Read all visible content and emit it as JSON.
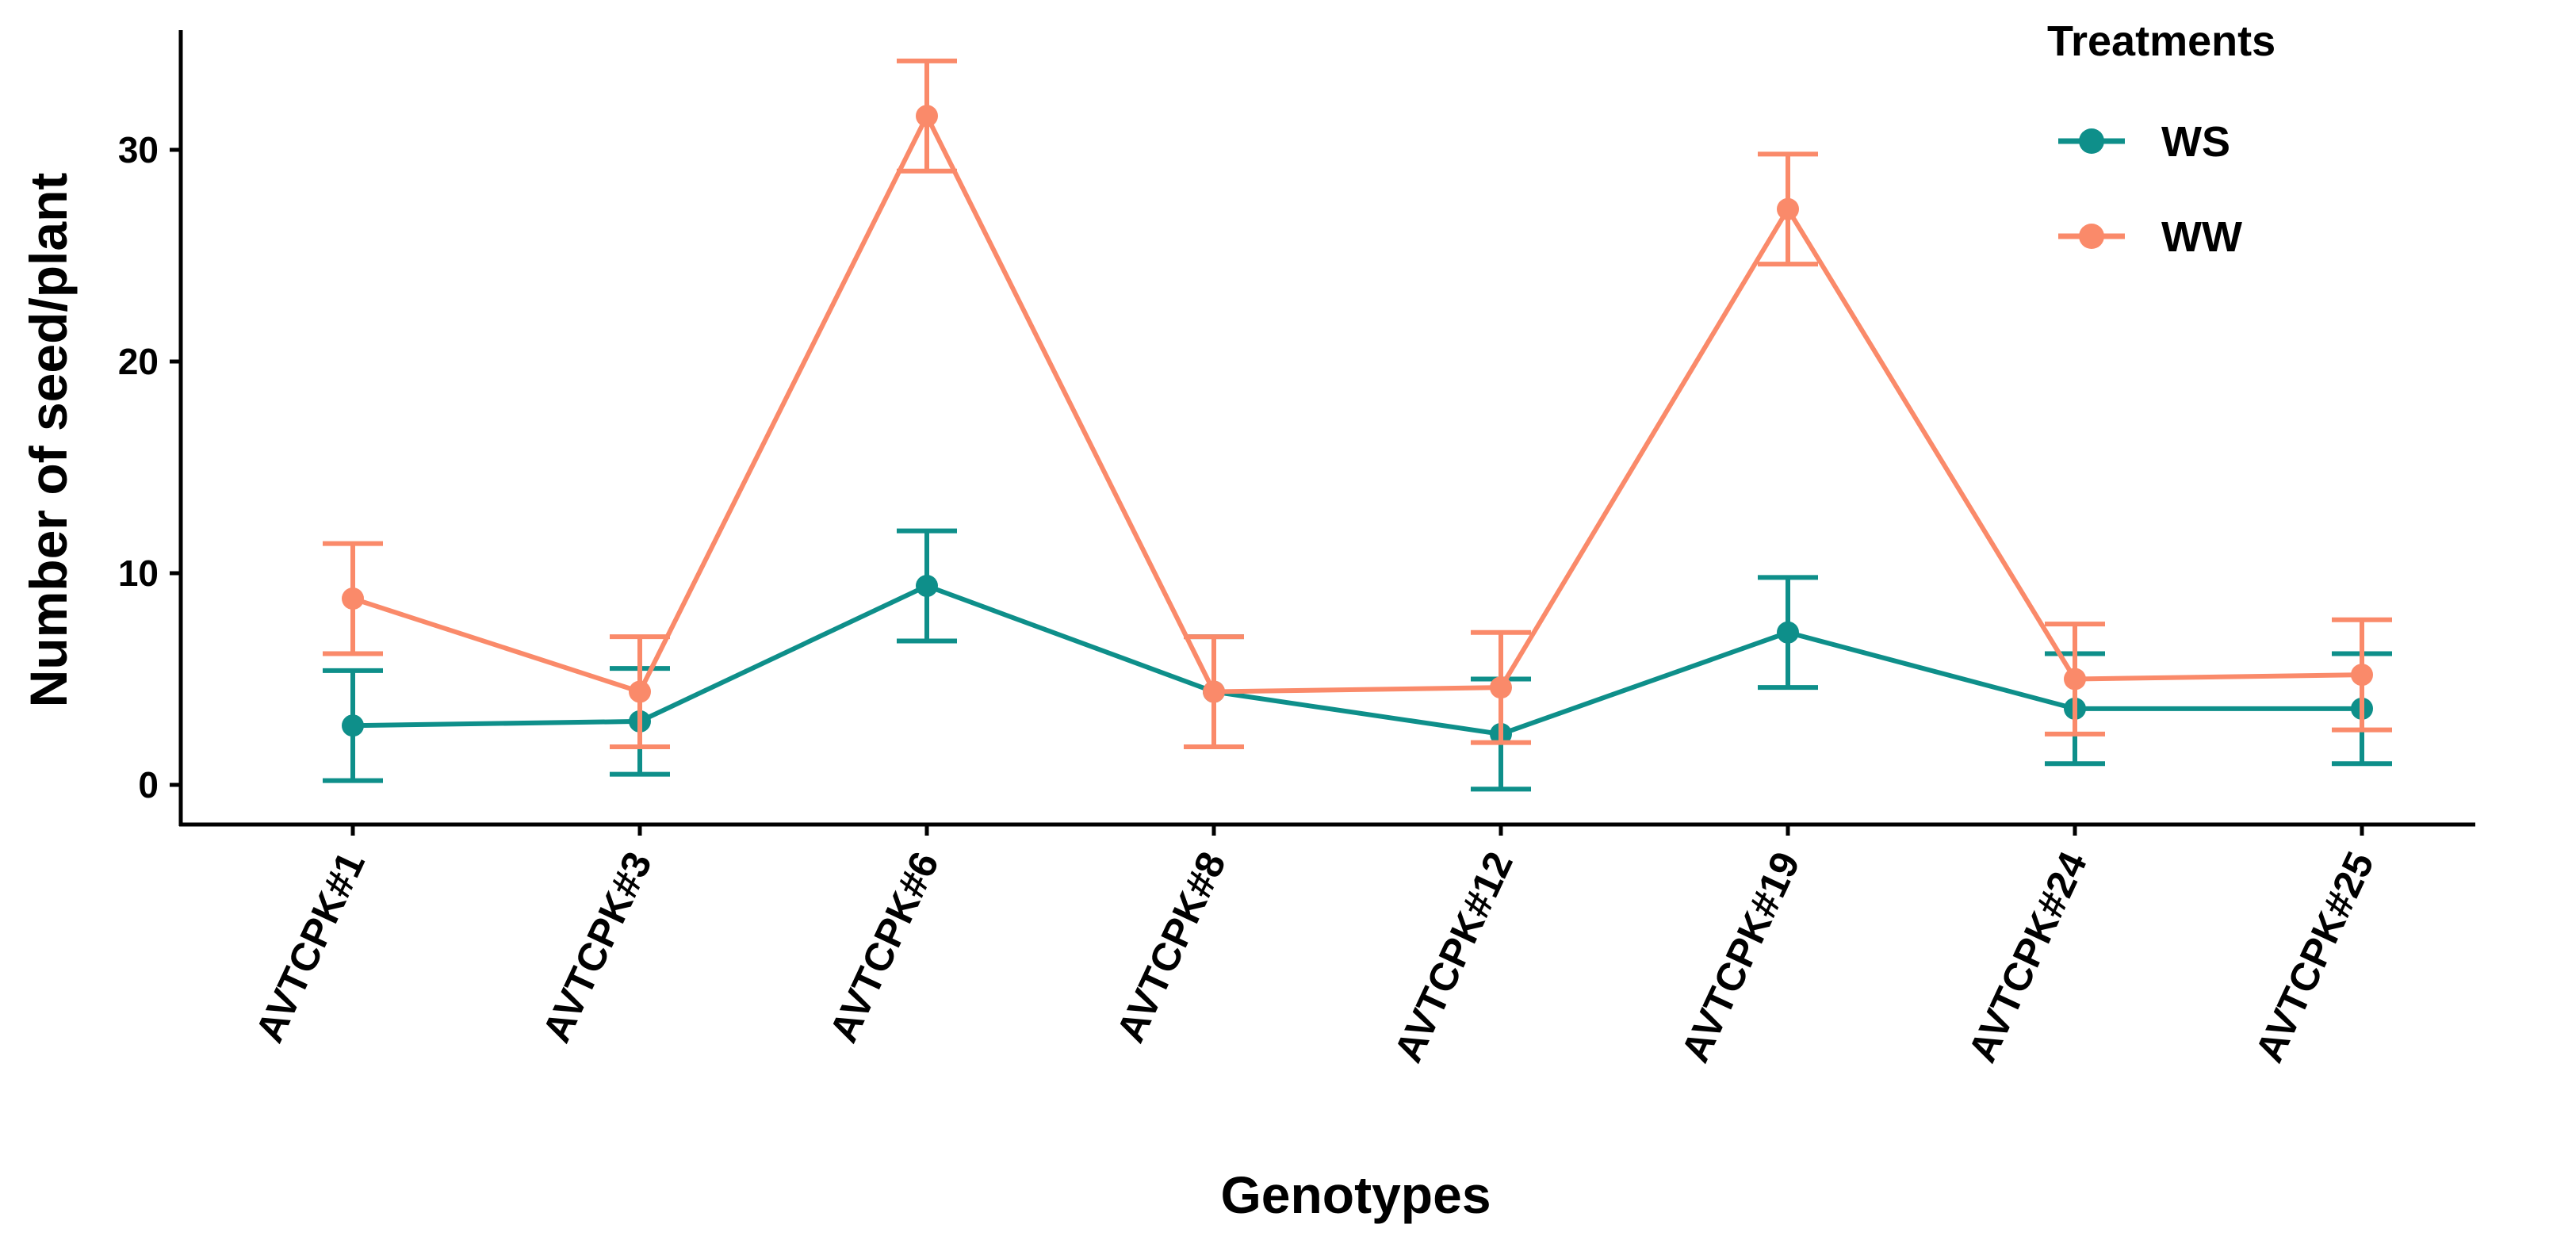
{
  "chart_data": {
    "type": "line",
    "title": "",
    "xlabel": "Genotypes",
    "ylabel": "Number of seed/plant",
    "categories": [
      "AVTCPK#1",
      "AVTCPK#3",
      "AVTCPK#6",
      "AVTCPK#8",
      "AVTCPK#12",
      "AVTCPK#19",
      "AVTCPK#24",
      "AVTCPK#25"
    ],
    "ylim": [
      -2,
      36
    ],
    "yticks": [
      0,
      10,
      20,
      30
    ],
    "ytick_labels": [
      "0",
      "10",
      "20",
      "30"
    ],
    "grid": false,
    "error_bars": true,
    "legend": {
      "title": "Treatments",
      "position": "top-right"
    },
    "series": [
      {
        "name": "WS",
        "color": "#0e8f8a",
        "values": [
          2.8,
          3.0,
          9.4,
          4.4,
          2.4,
          7.2,
          3.6,
          3.6
        ],
        "errors": [
          2.6,
          2.5,
          2.6,
          2.6,
          2.6,
          2.6,
          2.6,
          2.6
        ]
      },
      {
        "name": "WW",
        "color": "#fa8a6a",
        "values": [
          8.8,
          4.4,
          31.6,
          4.4,
          4.6,
          27.2,
          5.0,
          5.2
        ],
        "errors": [
          2.6,
          2.6,
          2.6,
          2.6,
          2.6,
          2.6,
          2.6,
          2.6
        ]
      }
    ]
  }
}
